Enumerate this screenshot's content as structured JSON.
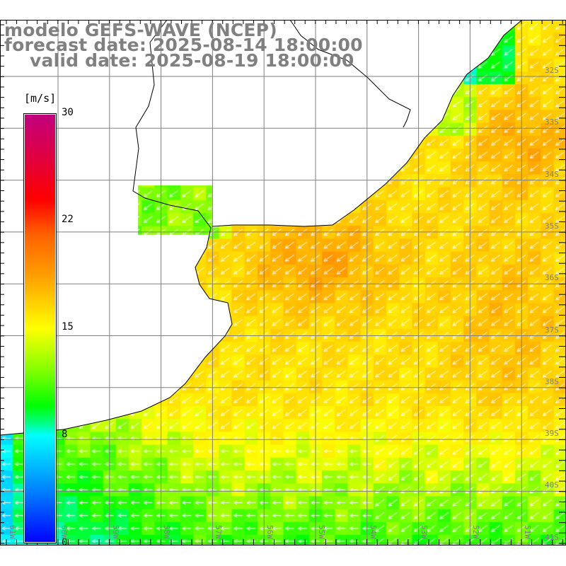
{
  "title": {
    "line1": "modelo GEFS-WAVE (NCEP)",
    "line2": "forecast date: 2025-08-14 18:00:00",
    "line3": "valid date: 2025-08-19 18:00:00"
  },
  "legend": {
    "unit": "[m/s]",
    "ticks": [
      "30",
      "22",
      "15",
      "8",
      "0"
    ],
    "range": [
      0,
      30
    ]
  },
  "latitude_labels": [
    "32S",
    "33S",
    "34S",
    "35S",
    "36S",
    "37S",
    "38S",
    "39S",
    "40S",
    "41S"
  ],
  "longitude_labels": [
    "61W",
    "60W",
    "59W",
    "58W",
    "57W",
    "56W",
    "55W",
    "54W",
    "53W",
    "52W",
    "51W"
  ],
  "colors": {
    "title": "#808080",
    "grid": "#808080",
    "coast": "#000000",
    "land": "#ffffff",
    "arrows": "#ffffff"
  }
}
